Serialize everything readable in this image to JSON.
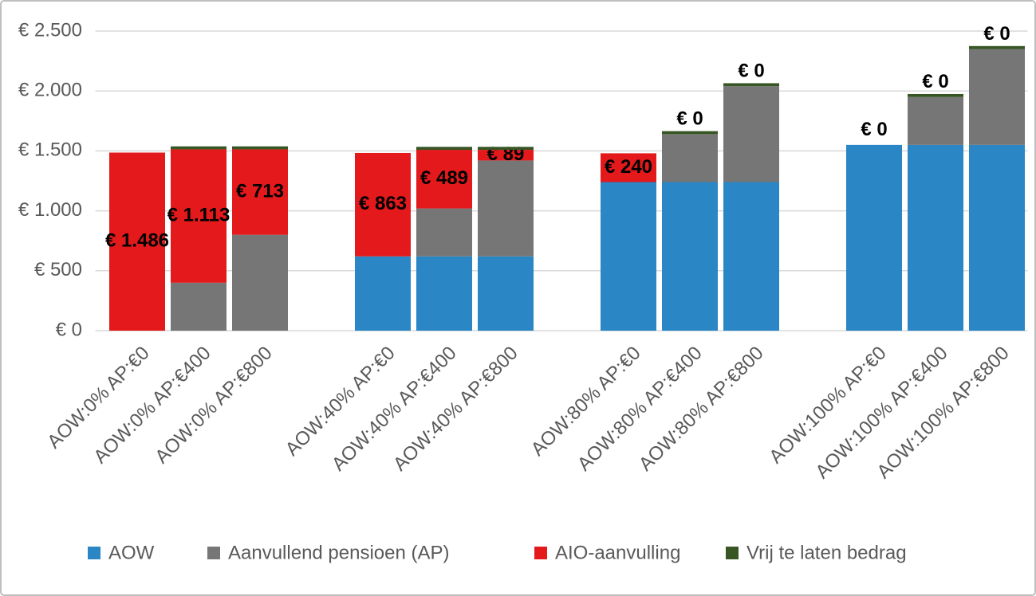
{
  "chart_data": {
    "type": "stacked-bar",
    "categories": [
      "AOW:0% AP:€0",
      "AOW:0% AP:€400",
      "AOW:0% AP:€800",
      null,
      "AOW:40% AP:€0",
      "AOW:40% AP:€400",
      "AOW:40% AP:€800",
      null,
      "AOW:80% AP:€0",
      "AOW:80% AP:€400",
      "AOW:80% AP:€800",
      null,
      "AOW:100% AP:€0",
      "AOW:100% AP:€400",
      "AOW:100% AP:€800"
    ],
    "series": [
      {
        "name": "AOW",
        "color": "#2a86c4",
        "values": [
          0,
          0,
          0,
          null,
          620,
          620,
          620,
          null,
          1240,
          1240,
          1240,
          null,
          1550,
          1550,
          1550
        ]
      },
      {
        "name": "Aanvullend pensioen (AP)",
        "color": "#767676",
        "values": [
          0,
          400,
          800,
          null,
          0,
          400,
          800,
          null,
          0,
          400,
          800,
          null,
          0,
          400,
          800
        ]
      },
      {
        "name": "AIO-aanvulling",
        "color": "#e3191c",
        "values": [
          1486,
          1113,
          713,
          null,
          863,
          489,
          89,
          null,
          240,
          0,
          0,
          null,
          0,
          0,
          0
        ],
        "value_labels": [
          "€ 1.486",
          "€ 1.113",
          "€ 713",
          null,
          "€ 863",
          "€ 489",
          "€ 89",
          null,
          "€ 240",
          "€ 0",
          "€ 0",
          null,
          "€ 0",
          "€ 0",
          "€ 0"
        ]
      },
      {
        "name": "Vrij te laten bedrag",
        "color": "#375623",
        "values": [
          0,
          25,
          25,
          null,
          0,
          25,
          25,
          null,
          0,
          25,
          25,
          null,
          0,
          25,
          25
        ]
      }
    ],
    "ylim": [
      0,
      2500
    ],
    "yticks": [
      {
        "value": 0,
        "label": "€ 0"
      },
      {
        "value": 500,
        "label": "€ 500"
      },
      {
        "value": 1000,
        "label": "€ 1.000"
      },
      {
        "value": 1500,
        "label": "€ 1.500"
      },
      {
        "value": 2000,
        "label": "€ 2.000"
      },
      {
        "value": 2500,
        "label": "€ 2.500"
      }
    ],
    "grid": true,
    "legend": "bottom"
  }
}
